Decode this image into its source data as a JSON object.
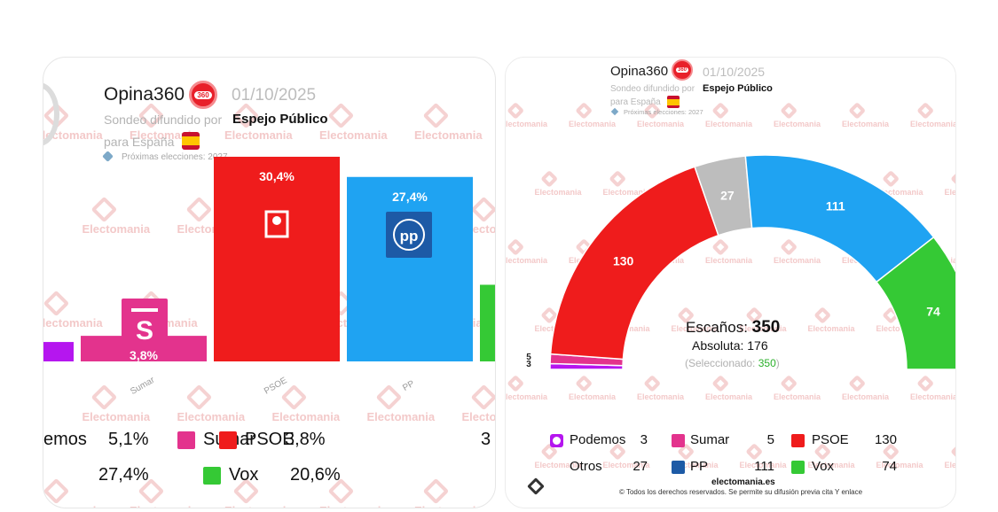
{
  "left": {
    "pollster": "Opina360",
    "pollster_badge": "360",
    "date": "01/10/2025",
    "broadcast_prefix": "Sondeo difundido por",
    "broadcaster": "Espejo Público",
    "region": "para España",
    "next_election": "Próximas elecciones: 2027",
    "watermark": "Electomania"
  },
  "right": {
    "pollster": "Opina360",
    "pollster_badge": "360",
    "date": "01/10/2025",
    "broadcast_prefix": "Sondeo difundido por",
    "broadcaster": "Espejo Público",
    "region": "para España",
    "next_election": "Próximas elecciones: 2027",
    "seats_label": "Escaños:",
    "seats_total": "350",
    "majority_label": "Absoluta:",
    "majority_value": "176",
    "selected_prefix": "(Seleccionado:",
    "selected_value": "350",
    "selected_suffix": ")",
    "footer_site": "electomania.es",
    "footer_rights": "© Todos los derechos reservados. Se permite su difusión previa cita Y enlace",
    "watermark": "Electomania"
  },
  "colors": {
    "podemos": "#b516ef",
    "sumar": "#e3338d",
    "psoe": "#ef1c1c",
    "pp": "#1fa3f2",
    "vox": "#35c935",
    "otros": "#bdbdbd"
  },
  "chart_data": [
    {
      "type": "bar",
      "categories": [
        "Sumar",
        "PSOE",
        "PP"
      ],
      "values": [
        3.8,
        30.4,
        27.4
      ],
      "value_labels": [
        "3,8%",
        "30,4%",
        "27,4%"
      ],
      "partial_edge_values": {
        "Podemos": 5.1,
        "Vox": 20.6
      },
      "legend": [
        {
          "name": "emos",
          "label": "5,1%"
        },
        {
          "name": "Sumar",
          "label": "3,8%"
        },
        {
          "name": "PSOE",
          "label": "3"
        },
        {
          "name": "",
          "label": "27,4%"
        },
        {
          "name": "Vox",
          "label": "20,6%"
        }
      ],
      "icon_pp": "pp"
    },
    {
      "type": "pie",
      "subtype": "parliament-semicircle",
      "slices": [
        {
          "name": "Podemos",
          "value": 3
        },
        {
          "name": "Sumar",
          "value": 5
        },
        {
          "name": "PSOE",
          "value": 130
        },
        {
          "name": "Otros",
          "value": 27
        },
        {
          "name": "PP",
          "value": 111
        },
        {
          "name": "Vox",
          "value": 74
        }
      ],
      "legend": [
        {
          "name": "Podemos",
          "value": "3"
        },
        {
          "name": "Sumar",
          "value": "5"
        },
        {
          "name": "PSOE",
          "value": "130"
        },
        {
          "name": "Otros",
          "value": "27"
        },
        {
          "name": "PP",
          "value": "111"
        },
        {
          "name": "Vox",
          "value": "74"
        }
      ]
    }
  ]
}
